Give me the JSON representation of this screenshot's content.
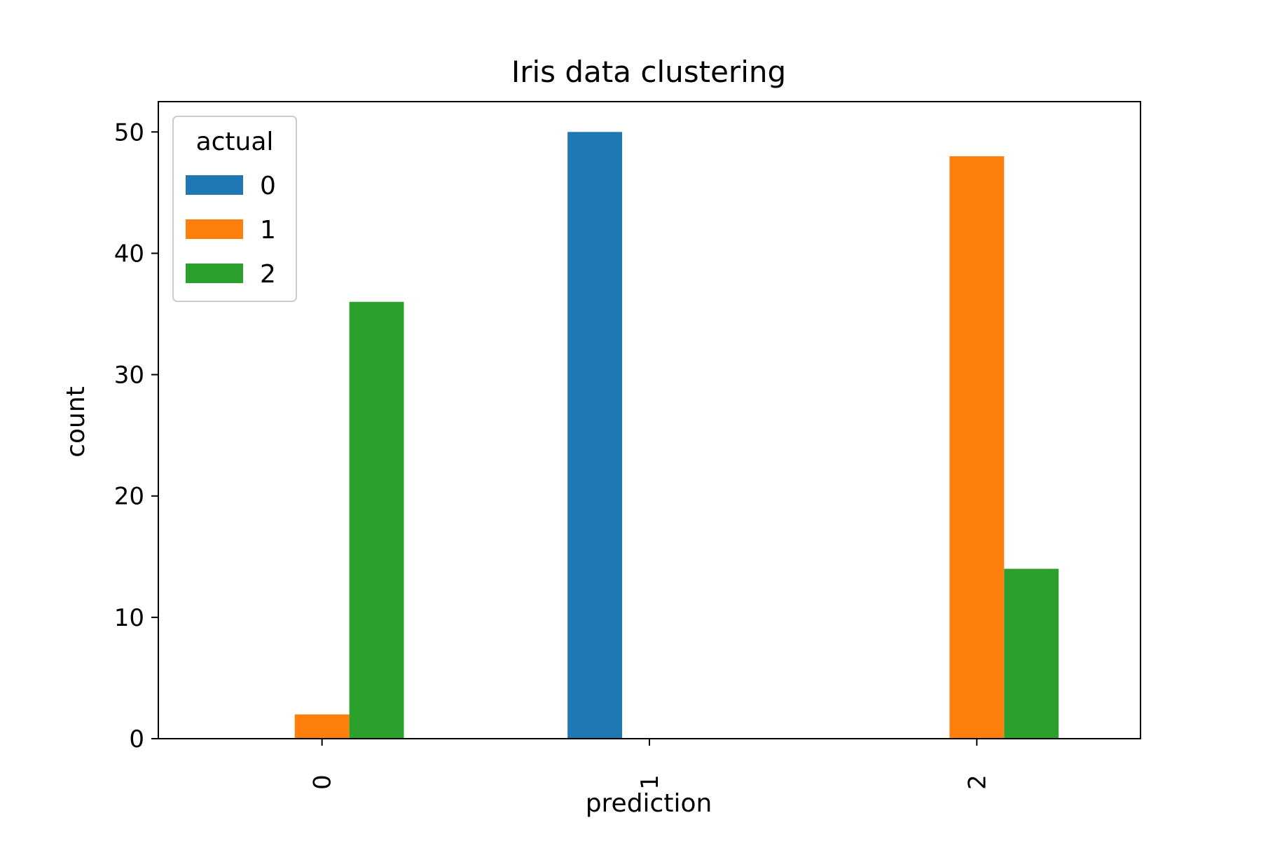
{
  "chart_data": {
    "type": "bar",
    "title": "Iris data clustering",
    "xlabel": "prediction",
    "ylabel": "count",
    "categories": [
      "0",
      "1",
      "2"
    ],
    "ylim": [
      0,
      52.5
    ],
    "yticks": [
      0,
      10,
      20,
      30,
      40,
      50
    ],
    "grid": false,
    "legend": {
      "title": "actual",
      "placement": "top-left"
    },
    "series": [
      {
        "name": "0",
        "color": "#1f77b4",
        "values": [
          0,
          50,
          0
        ]
      },
      {
        "name": "1",
        "color": "#ff7f0e",
        "values": [
          2,
          0,
          48
        ]
      },
      {
        "name": "2",
        "color": "#2ca02c",
        "values": [
          36,
          0,
          14
        ]
      }
    ]
  }
}
